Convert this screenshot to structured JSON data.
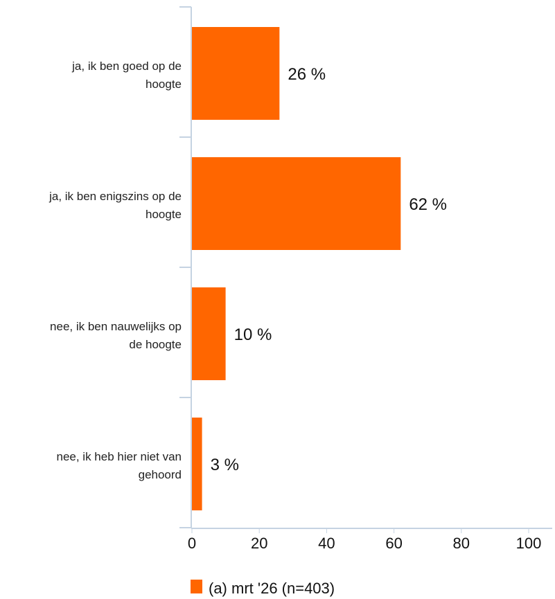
{
  "chart_data": {
    "type": "bar",
    "orientation": "horizontal",
    "categories": [
      [
        "ja, ik ben goed op de",
        "hoogte"
      ],
      [
        "ja, ik ben enigszins op de",
        "hoogte"
      ],
      [
        "nee, ik ben nauwelijks op",
        "de hoogte"
      ],
      [
        "nee, ik heb hier niet van",
        "gehoord"
      ]
    ],
    "series": [
      {
        "name": "(a) mrt '26 (n=403)",
        "values": [
          26,
          62,
          10,
          3
        ],
        "value_labels": [
          "26 %",
          "62 %",
          "10 %",
          "3 %"
        ],
        "color": "#ff6600"
      }
    ],
    "xlim": [
      0,
      100
    ],
    "xticks": [
      0,
      20,
      40,
      60,
      80,
      100
    ],
    "xtick_labels": [
      "0",
      "20",
      "40",
      "60",
      "80",
      "100"
    ],
    "axis_color": "#c5d3e2",
    "grid": false,
    "legend_position": "bottom"
  }
}
